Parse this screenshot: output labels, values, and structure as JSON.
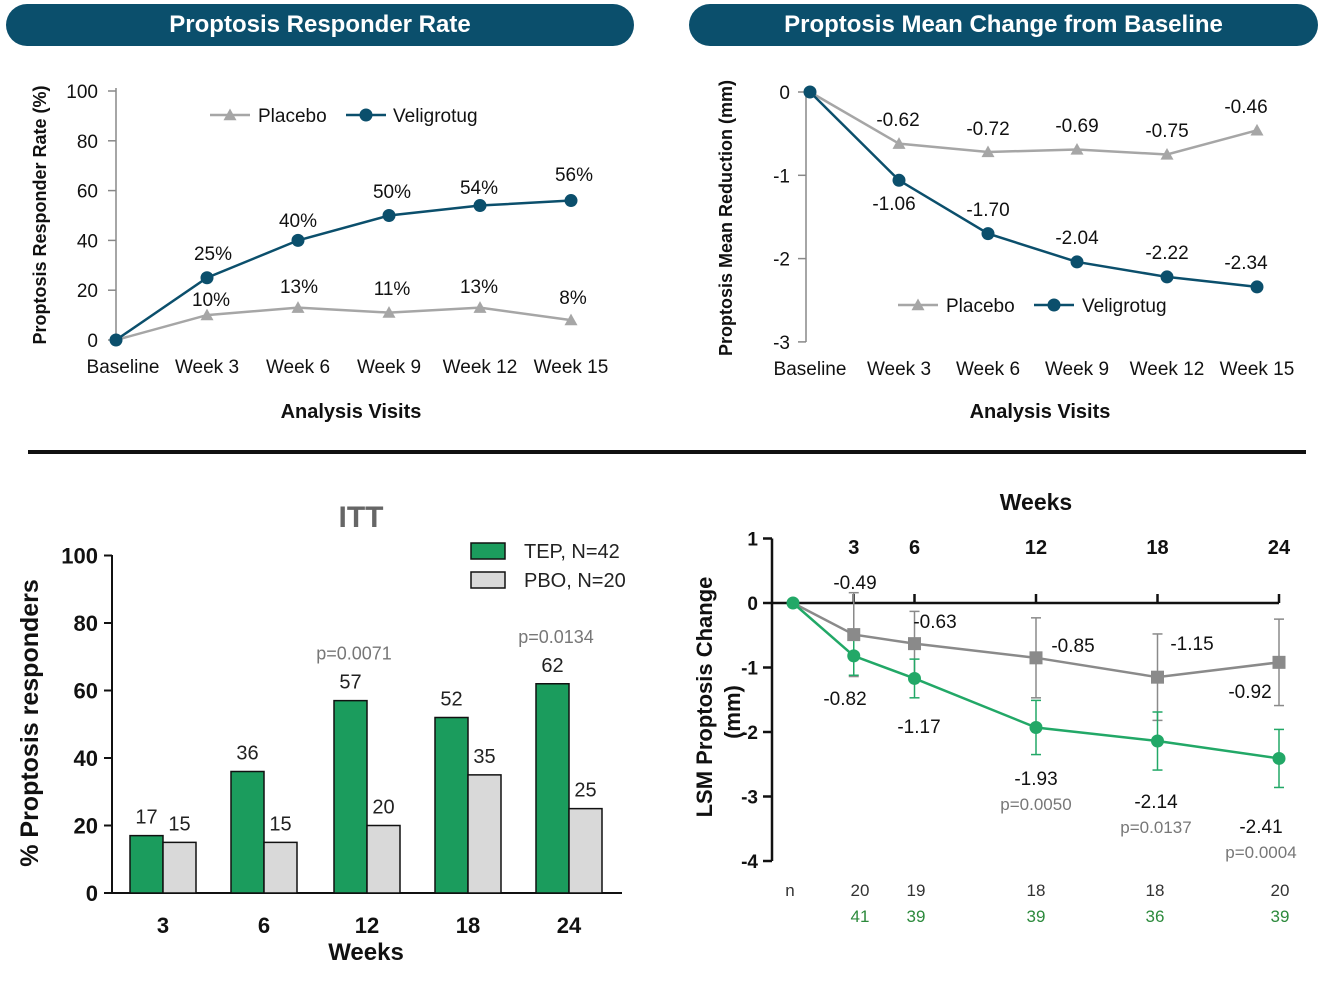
{
  "colors": {
    "banner": "#0b4f6c",
    "navy": "#0b4f6c",
    "grey": "#a6a6a6",
    "green": "#1f9a5c",
    "greenbar": "#1b9c5d",
    "barGrey": "#d9d9d9",
    "greyLine": "#8a8a8a",
    "greenLine": "#22a867"
  },
  "chart_data": [
    {
      "type": "line",
      "title": "Proptosis Responder Rate",
      "xlabel": "Analysis Visits",
      "ylabel": "Proptosis Responder Rate (%)",
      "categories": [
        "Baseline",
        "Week 3",
        "Week 6",
        "Week 9",
        "Week 12",
        "Week 15"
      ],
      "ylim": [
        0,
        100
      ],
      "yticks": [
        0,
        20,
        40,
        60,
        80,
        100
      ],
      "legend": "top-left",
      "series": [
        {
          "name": "Placebo",
          "marker": "triangle",
          "values": [
            0,
            10,
            13,
            11,
            13,
            8
          ],
          "labels": [
            "",
            "10%",
            "13%",
            "11%",
            "13%",
            "8%"
          ]
        },
        {
          "name": "Veligrotug",
          "marker": "circle",
          "values": [
            0,
            25,
            40,
            50,
            54,
            56
          ],
          "labels": [
            "",
            "25%",
            "40%",
            "50%",
            "54%",
            "56%"
          ]
        }
      ]
    },
    {
      "type": "line",
      "title": "Proptosis Mean Change from Baseline",
      "xlabel": "Analysis Visits",
      "ylabel": "Proptosis Mean Reduction (mm)",
      "categories": [
        "Baseline",
        "Week 3",
        "Week 6",
        "Week 9",
        "Week 12",
        "Week 15"
      ],
      "ylim": [
        -3,
        0
      ],
      "yticks": [
        0,
        -1,
        -2,
        -3
      ],
      "legend": "bottom-center",
      "series": [
        {
          "name": "Placebo",
          "marker": "triangle",
          "values": [
            0,
            -0.62,
            -0.72,
            -0.69,
            -0.75,
            -0.46
          ],
          "labels": [
            "",
            "-0.62",
            "-0.72",
            "-0.69",
            "-0.75",
            "-0.46"
          ]
        },
        {
          "name": "Veligrotug",
          "marker": "circle",
          "values": [
            0,
            -1.06,
            -1.7,
            -2.04,
            -2.22,
            -2.34
          ],
          "labels": [
            "",
            "-1.06",
            "-1.70",
            "-2.04",
            "-2.22",
            "-2.34"
          ]
        }
      ]
    },
    {
      "type": "bar",
      "title": "ITT",
      "xlabel": "Weeks",
      "ylabel": "% Proptosis responders",
      "categories": [
        "3",
        "6",
        "12",
        "18",
        "24"
      ],
      "ylim": [
        0,
        100
      ],
      "yticks": [
        0,
        20,
        40,
        60,
        80,
        100
      ],
      "legend": "top-right",
      "series": [
        {
          "name": "TEP, N=42",
          "values": [
            17,
            36,
            57,
            52,
            62
          ]
        },
        {
          "name": "PBO, N=20",
          "values": [
            15,
            15,
            20,
            35,
            25
          ]
        }
      ],
      "pvalues": [
        "",
        "",
        "p=0.0071",
        "",
        "p=0.0134"
      ]
    },
    {
      "type": "line",
      "title": "Weeks",
      "xlabel": "",
      "ylabel": "LSM Proptosis Change (mm)",
      "x": [
        0,
        3,
        6,
        12,
        18,
        24
      ],
      "xticklabels": [
        "",
        "3",
        "6",
        "12",
        "18",
        "24"
      ],
      "ylim": [
        -4,
        1
      ],
      "yticks": [
        1,
        0,
        -1,
        -2,
        -3,
        -4
      ],
      "series": [
        {
          "name": "",
          "color": "grey",
          "values": [
            0,
            -0.49,
            -0.63,
            -0.85,
            -1.15,
            -0.92
          ],
          "err": [
            0,
            0.65,
            0.5,
            0.62,
            0.67,
            0.67
          ],
          "labels": [
            "",
            "-0.49",
            "-0.63",
            "-0.85",
            "-1.15",
            "-0.92"
          ]
        },
        {
          "name": "",
          "color": "green",
          "values": [
            0,
            -0.82,
            -1.17,
            -1.93,
            -2.14,
            -2.41
          ],
          "err": [
            0,
            0.3,
            0.3,
            0.42,
            0.45,
            0.45
          ],
          "labels": [
            "",
            "-0.82",
            "-1.17",
            "-1.93",
            "-2.14",
            "-2.41"
          ]
        }
      ],
      "pvalues": [
        "",
        "",
        "",
        "p=0.0050",
        "p=0.0137",
        "p=0.0004"
      ],
      "n_label": "n",
      "n_grey": [
        "",
        "20",
        "19",
        "18",
        "18",
        "20"
      ],
      "n_green": [
        "",
        "41",
        "39",
        "39",
        "36",
        "39"
      ]
    }
  ]
}
